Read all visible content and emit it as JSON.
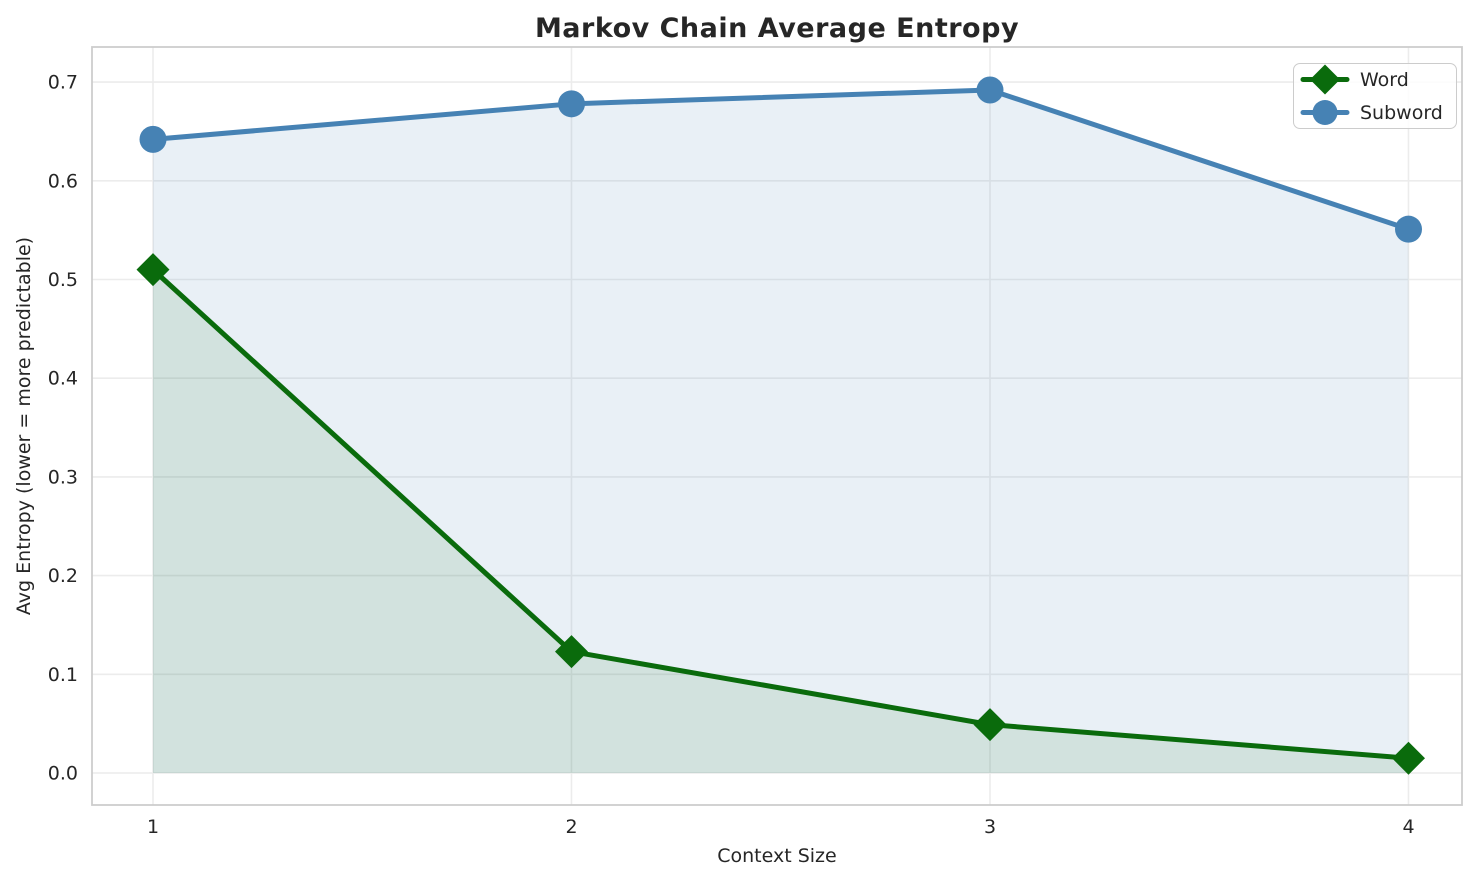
{
  "chart_data": {
    "type": "line",
    "title": "Markov Chain Average Entropy",
    "xlabel": "Context Size",
    "ylabel": "Avg Entropy (lower = more predictable)",
    "x": [
      1,
      2,
      3,
      4
    ],
    "xtick_labels": [
      "1",
      "2",
      "3",
      "4"
    ],
    "ytick_labels": [
      "0.0",
      "0.1",
      "0.2",
      "0.3",
      "0.4",
      "0.5",
      "0.6",
      "0.7"
    ],
    "ytick_values": [
      0.0,
      0.1,
      0.2,
      0.3,
      0.4,
      0.5,
      0.6,
      0.7
    ],
    "xlim": [
      0.855,
      4.128
    ],
    "ylim": [
      -0.033,
      0.736
    ],
    "grid": true,
    "legend_position": "upper right",
    "series": [
      {
        "name": "Word",
        "values": [
          0.51,
          0.123,
          0.049,
          0.015
        ],
        "color": "#0a6b0c",
        "marker": "diamond",
        "area_fill": true,
        "fill_alpha": 0.1
      },
      {
        "name": "Subword",
        "values": [
          0.642,
          0.678,
          0.692,
          0.551
        ],
        "color": "#4682b4",
        "marker": "circle",
        "area_fill": true,
        "fill_alpha": 0.12
      }
    ]
  },
  "colors": {
    "grid": "#ececec",
    "spine": "#cdcdcd",
    "text": "#262626",
    "background": "#ffffff"
  }
}
